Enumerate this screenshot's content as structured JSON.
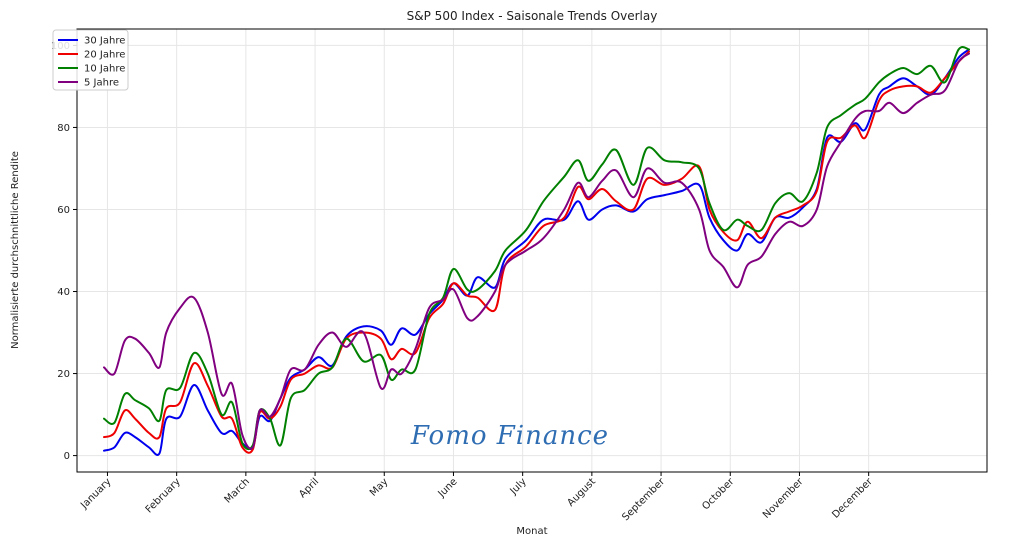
{
  "chart_data": {
    "type": "line",
    "title": "S&P 500 Index - Saisonale Trends Overlay",
    "xlabel": "Monat",
    "ylabel": "Normalisierte durchschnittliche Rendite",
    "ylim": [
      -4,
      104
    ],
    "yticks": [
      0,
      20,
      40,
      60,
      80,
      100
    ],
    "months": [
      "January",
      "February",
      "March",
      "April",
      "May",
      "June",
      "July",
      "August",
      "September",
      "October",
      "November",
      "December"
    ],
    "grid": true,
    "legend_position": "top-left",
    "watermark": "Fomo Finance",
    "series": [
      {
        "name": "30 Jahre",
        "color": "#0000ee",
        "points": [
          [
            0,
            1.2
          ],
          [
            0.3,
            2
          ],
          [
            0.6,
            5.5
          ],
          [
            0.9,
            4.5
          ],
          [
            1.3,
            2
          ],
          [
            1.6,
            0.5
          ],
          [
            1.8,
            9
          ],
          [
            2.2,
            9.5
          ],
          [
            2.6,
            17.2
          ],
          [
            3,
            11
          ],
          [
            3.4,
            5.5
          ],
          [
            3.7,
            6
          ],
          [
            4,
            3
          ],
          [
            4.3,
            2
          ],
          [
            4.5,
            9.5
          ],
          [
            4.8,
            8.5
          ],
          [
            5.1,
            14
          ],
          [
            5.4,
            19
          ],
          [
            5.8,
            21
          ],
          [
            6.2,
            24
          ],
          [
            6.6,
            22
          ],
          [
            7,
            29
          ],
          [
            7.5,
            31.5
          ],
          [
            8,
            30.5
          ],
          [
            8.3,
            27
          ],
          [
            8.6,
            31
          ],
          [
            9,
            29.5
          ],
          [
            9.4,
            34.5
          ],
          [
            9.8,
            38
          ],
          [
            10.1,
            42
          ],
          [
            10.5,
            39
          ],
          [
            10.8,
            43.5
          ],
          [
            11.3,
            41
          ],
          [
            11.6,
            48
          ],
          [
            12.2,
            52.5
          ],
          [
            12.7,
            57.5
          ],
          [
            13.3,
            57.5
          ],
          [
            13.7,
            62
          ],
          [
            14,
            57.5
          ],
          [
            14.4,
            60
          ],
          [
            14.8,
            61
          ],
          [
            15.3,
            59.5
          ],
          [
            15.7,
            62.5
          ],
          [
            16.2,
            63.5
          ],
          [
            16.7,
            64.5
          ],
          [
            17.2,
            66
          ],
          [
            17.5,
            58
          ],
          [
            17.9,
            52.5
          ],
          [
            18.3,
            50
          ],
          [
            18.6,
            54
          ],
          [
            19,
            52
          ],
          [
            19.4,
            58
          ],
          [
            19.8,
            58
          ],
          [
            20.2,
            60.5
          ],
          [
            20.6,
            65
          ],
          [
            20.9,
            77.5
          ],
          [
            21.3,
            76.5
          ],
          [
            21.7,
            81
          ],
          [
            22,
            79.5
          ],
          [
            22.4,
            88
          ],
          [
            22.7,
            90
          ],
          [
            23.1,
            92
          ],
          [
            23.5,
            90
          ],
          [
            23.9,
            88
          ],
          [
            24.3,
            92
          ],
          [
            24.7,
            97
          ],
          [
            25,
            99
          ]
        ]
      },
      {
        "name": "20 Jahre",
        "color": "#ee0000",
        "points": [
          [
            0,
            4.5
          ],
          [
            0.3,
            5.5
          ],
          [
            0.6,
            11
          ],
          [
            0.9,
            9
          ],
          [
            1.3,
            5.5
          ],
          [
            1.6,
            4.5
          ],
          [
            1.8,
            11.5
          ],
          [
            2.2,
            13
          ],
          [
            2.6,
            22.5
          ],
          [
            3,
            17
          ],
          [
            3.4,
            9.5
          ],
          [
            3.7,
            9
          ],
          [
            4,
            2
          ],
          [
            4.3,
            1.5
          ],
          [
            4.5,
            10.5
          ],
          [
            4.8,
            9
          ],
          [
            5.1,
            12
          ],
          [
            5.4,
            18.5
          ],
          [
            5.8,
            20
          ],
          [
            6.2,
            22
          ],
          [
            6.6,
            21.5
          ],
          [
            7,
            28.5
          ],
          [
            7.5,
            30
          ],
          [
            8,
            28.5
          ],
          [
            8.3,
            23.5
          ],
          [
            8.6,
            26
          ],
          [
            9,
            25
          ],
          [
            9.4,
            33.5
          ],
          [
            9.8,
            37
          ],
          [
            10.1,
            42
          ],
          [
            10.5,
            39
          ],
          [
            10.8,
            38.5
          ],
          [
            11.3,
            35.5
          ],
          [
            11.6,
            46.5
          ],
          [
            12.2,
            51
          ],
          [
            12.7,
            56
          ],
          [
            13.3,
            58
          ],
          [
            13.7,
            65.5
          ],
          [
            14,
            62.5
          ],
          [
            14.4,
            65
          ],
          [
            14.8,
            62
          ],
          [
            15.3,
            60
          ],
          [
            15.7,
            67.5
          ],
          [
            16.2,
            66
          ],
          [
            16.7,
            67.5
          ],
          [
            17.2,
            70.5
          ],
          [
            17.5,
            60
          ],
          [
            17.9,
            54.5
          ],
          [
            18.3,
            52.5
          ],
          [
            18.6,
            57
          ],
          [
            19,
            53
          ],
          [
            19.4,
            58
          ],
          [
            19.8,
            59.5
          ],
          [
            20.2,
            61
          ],
          [
            20.6,
            64.5
          ],
          [
            20.9,
            76.5
          ],
          [
            21.3,
            77.5
          ],
          [
            21.7,
            80.5
          ],
          [
            22,
            77.5
          ],
          [
            22.4,
            86.5
          ],
          [
            22.7,
            89
          ],
          [
            23.1,
            90
          ],
          [
            23.5,
            90
          ],
          [
            23.9,
            88.5
          ],
          [
            24.3,
            92
          ],
          [
            24.7,
            96
          ],
          [
            25,
            98.5
          ]
        ]
      },
      {
        "name": "10 Jahre",
        "color": "#008000",
        "points": [
          [
            0,
            9
          ],
          [
            0.3,
            8
          ],
          [
            0.6,
            15
          ],
          [
            0.9,
            13.5
          ],
          [
            1.3,
            11.5
          ],
          [
            1.6,
            8.5
          ],
          [
            1.8,
            16
          ],
          [
            2.2,
            16.5
          ],
          [
            2.6,
            25
          ],
          [
            3,
            20
          ],
          [
            3.4,
            10
          ],
          [
            3.7,
            13
          ],
          [
            4,
            3
          ],
          [
            4.3,
            2.5
          ],
          [
            4.5,
            11
          ],
          [
            4.8,
            9
          ],
          [
            5.1,
            2.5
          ],
          [
            5.4,
            14
          ],
          [
            5.8,
            16
          ],
          [
            6.2,
            20
          ],
          [
            6.6,
            21.5
          ],
          [
            7,
            28.5
          ],
          [
            7.5,
            23
          ],
          [
            8,
            24.5
          ],
          [
            8.3,
            18.5
          ],
          [
            8.6,
            21
          ],
          [
            9,
            21
          ],
          [
            9.4,
            34.5
          ],
          [
            9.8,
            38.5
          ],
          [
            10.1,
            45.5
          ],
          [
            10.5,
            40.5
          ],
          [
            10.8,
            40.5
          ],
          [
            11.3,
            45
          ],
          [
            11.6,
            50
          ],
          [
            12.2,
            55
          ],
          [
            12.7,
            62
          ],
          [
            13.3,
            68
          ],
          [
            13.7,
            72
          ],
          [
            14,
            67
          ],
          [
            14.4,
            71
          ],
          [
            14.8,
            74.5
          ],
          [
            15.3,
            66
          ],
          [
            15.7,
            75
          ],
          [
            16.2,
            72
          ],
          [
            16.7,
            71.5
          ],
          [
            17.2,
            70
          ],
          [
            17.5,
            61.5
          ],
          [
            17.9,
            55
          ],
          [
            18.3,
            57.5
          ],
          [
            18.6,
            56
          ],
          [
            19,
            55
          ],
          [
            19.4,
            61.5
          ],
          [
            19.8,
            64
          ],
          [
            20.2,
            62
          ],
          [
            20.6,
            69
          ],
          [
            20.9,
            80
          ],
          [
            21.3,
            83
          ],
          [
            21.7,
            85.5
          ],
          [
            22,
            87
          ],
          [
            22.4,
            91
          ],
          [
            22.7,
            93
          ],
          [
            23.1,
            94.5
          ],
          [
            23.5,
            93
          ],
          [
            23.9,
            95
          ],
          [
            24.3,
            91
          ],
          [
            24.7,
            99
          ],
          [
            25,
            99
          ]
        ]
      },
      {
        "name": "5 Jahre",
        "color": "#800080",
        "points": [
          [
            0,
            21.5
          ],
          [
            0.3,
            20
          ],
          [
            0.6,
            28
          ],
          [
            0.9,
            28.5
          ],
          [
            1.3,
            25
          ],
          [
            1.6,
            21.5
          ],
          [
            1.8,
            30
          ],
          [
            2.2,
            36
          ],
          [
            2.6,
            38.5
          ],
          [
            3,
            30
          ],
          [
            3.4,
            15
          ],
          [
            3.7,
            17.5
          ],
          [
            4,
            5
          ],
          [
            4.3,
            2
          ],
          [
            4.5,
            11
          ],
          [
            4.8,
            9.5
          ],
          [
            5.1,
            14
          ],
          [
            5.4,
            21
          ],
          [
            5.8,
            21
          ],
          [
            6.2,
            27
          ],
          [
            6.6,
            30
          ],
          [
            7,
            26.5
          ],
          [
            7.5,
            30
          ],
          [
            8,
            16.5
          ],
          [
            8.3,
            21
          ],
          [
            8.6,
            20
          ],
          [
            9,
            26
          ],
          [
            9.4,
            36
          ],
          [
            9.8,
            38
          ],
          [
            10.1,
            40.5
          ],
          [
            10.5,
            33.5
          ],
          [
            10.8,
            34
          ],
          [
            11.3,
            40
          ],
          [
            11.6,
            46.5
          ],
          [
            12.2,
            50
          ],
          [
            12.7,
            53
          ],
          [
            13.3,
            60
          ],
          [
            13.7,
            66.5
          ],
          [
            14,
            63
          ],
          [
            14.4,
            67
          ],
          [
            14.8,
            69.5
          ],
          [
            15.3,
            63
          ],
          [
            15.7,
            70
          ],
          [
            16.2,
            66.5
          ],
          [
            16.7,
            66.5
          ],
          [
            17.2,
            60
          ],
          [
            17.5,
            50
          ],
          [
            17.9,
            46
          ],
          [
            18.3,
            41
          ],
          [
            18.6,
            46.5
          ],
          [
            19,
            48.5
          ],
          [
            19.4,
            54
          ],
          [
            19.8,
            57
          ],
          [
            20.2,
            56
          ],
          [
            20.6,
            60
          ],
          [
            20.9,
            70.5
          ],
          [
            21.3,
            76.5
          ],
          [
            21.7,
            82
          ],
          [
            22,
            84
          ],
          [
            22.4,
            84
          ],
          [
            22.7,
            86
          ],
          [
            23.1,
            83.5
          ],
          [
            23.5,
            86
          ],
          [
            23.9,
            88
          ],
          [
            24.3,
            89
          ],
          [
            24.7,
            96
          ],
          [
            25,
            98
          ]
        ]
      }
    ]
  }
}
